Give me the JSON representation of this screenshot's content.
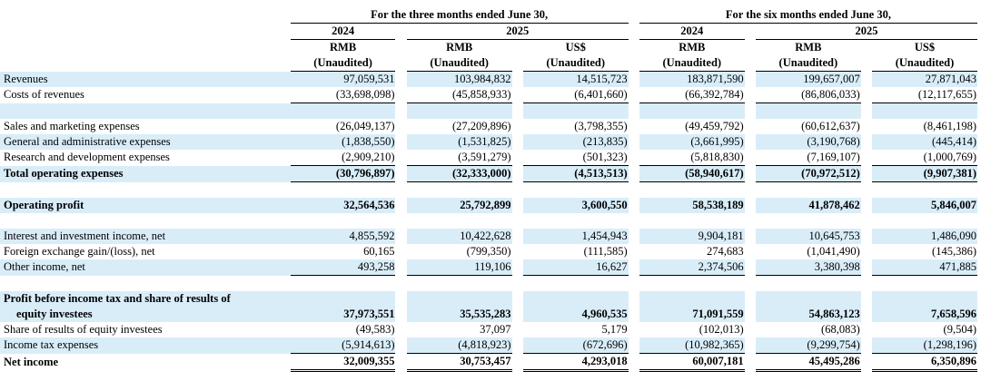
{
  "header": {
    "group1": "For the three months ended June 30,",
    "group2": "For the six months ended June 30,",
    "years_row": [
      "2024",
      "2025",
      "2024",
      "2025"
    ],
    "currency": [
      "RMB",
      "RMB",
      "US$",
      "RMB",
      "RMB",
      "US$"
    ],
    "audit": [
      "(Unaudited)",
      "(Unaudited)",
      "(Unaudited)",
      "(Unaudited)",
      "(Unaudited)",
      "(Unaudited)"
    ]
  },
  "rows": {
    "revenues": {
      "label": "Revenues",
      "v": [
        "97,059,531",
        "103,984,832",
        "14,515,723",
        "183,871,590",
        "199,657,007",
        "27,871,043"
      ]
    },
    "costs": {
      "label": "Costs of revenues",
      "v": [
        "(33,698,098)",
        "(45,858,933)",
        "(6,401,660)",
        "(66,392,784)",
        "(86,806,033)",
        "(12,117,655)"
      ]
    },
    "sales": {
      "label": "Sales and marketing expenses",
      "v": [
        "(26,049,137)",
        "(27,209,896)",
        "(3,798,355)",
        "(49,459,792)",
        "(60,612,637)",
        "(8,461,198)"
      ]
    },
    "ga": {
      "label": "General and administrative expenses",
      "v": [
        "(1,838,550)",
        "(1,531,825)",
        "(213,835)",
        "(3,661,995)",
        "(3,190,768)",
        "(445,414)"
      ]
    },
    "rd": {
      "label": "Research and development expenses",
      "v": [
        "(2,909,210)",
        "(3,591,279)",
        "(501,323)",
        "(5,818,830)",
        "(7,169,107)",
        "(1,000,769)"
      ]
    },
    "total_opex": {
      "label": "Total operating expenses",
      "v": [
        "(30,796,897)",
        "(32,333,000)",
        "(4,513,513)",
        "(58,940,617)",
        "(70,972,512)",
        "(9,907,381)"
      ]
    },
    "op_profit": {
      "label": "Operating profit",
      "v": [
        "32,564,536",
        "25,792,899",
        "3,600,550",
        "58,538,189",
        "41,878,462",
        "5,846,007"
      ]
    },
    "interest": {
      "label": "Interest and investment income, net",
      "v": [
        "4,855,592",
        "10,422,628",
        "1,454,943",
        "9,904,181",
        "10,645,753",
        "1,486,090"
      ]
    },
    "fx": {
      "label": "Foreign exchange gain/(loss), net",
      "v": [
        "60,165",
        "(799,350)",
        "(111,585)",
        "274,683",
        "(1,041,490)",
        "(145,386)"
      ]
    },
    "other": {
      "label": "Other income, net",
      "v": [
        "493,258",
        "119,106",
        "16,627",
        "2,374,506",
        "3,380,398",
        "471,885"
      ]
    },
    "pbt": {
      "label1": "Profit before income tax and share of results of",
      "label2": "equity investees",
      "v": [
        "37,973,551",
        "35,535,283",
        "4,960,535",
        "71,091,559",
        "54,863,123",
        "7,658,596"
      ]
    },
    "share": {
      "label": "Share of results of equity investees",
      "v": [
        "(49,583)",
        "37,097",
        "5,179",
        "(102,013)",
        "(68,083)",
        "(9,504)"
      ]
    },
    "tax": {
      "label": "Income tax expenses",
      "v": [
        "(5,914,613)",
        "(4,818,923)",
        "(672,696)",
        "(10,982,365)",
        "(9,299,754)",
        "(1,298,196)"
      ]
    },
    "net": {
      "label": "Net income",
      "v": [
        "32,009,355",
        "30,753,457",
        "4,293,018",
        "60,007,181",
        "45,495,286",
        "6,350,896"
      ]
    }
  }
}
